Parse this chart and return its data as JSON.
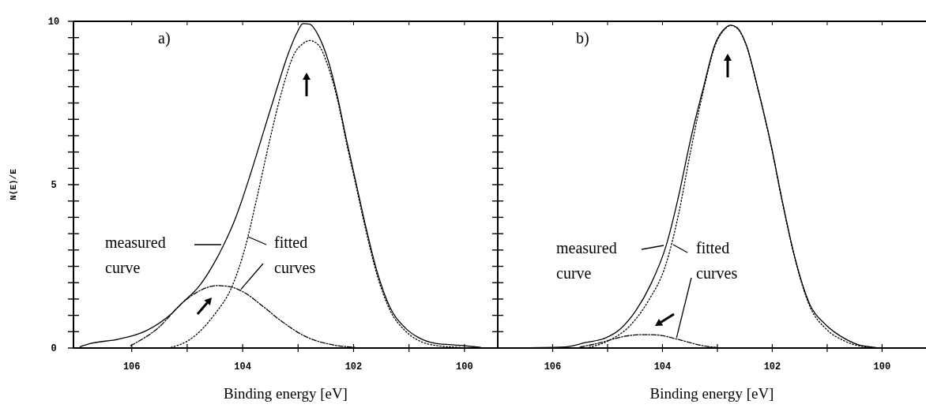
{
  "chart_data": [
    {
      "type": "line",
      "xlabel": "Binding energy [eV]",
      "ylabel": "N(E)/E",
      "xlim": [
        107.05,
        99.4
      ],
      "ylim": [
        0,
        10
      ],
      "xticks": [
        106,
        {
          "value": 105,
          "label": null
        },
        104,
        {
          "value": 103,
          "label": null
        },
        102,
        {
          "value": 101,
          "label": null
        },
        100
      ],
      "yticks": [
        0,
        {
          "value": 0.5,
          "label": null
        },
        {
          "value": 1,
          "label": null
        },
        {
          "value": 1.5,
          "label": null
        },
        {
          "value": 2,
          "label": null
        },
        {
          "value": 2.5,
          "label": null
        },
        {
          "value": 3,
          "label": null
        },
        {
          "value": 3.5,
          "label": null
        },
        {
          "value": 4,
          "label": null
        },
        {
          "value": 4.5,
          "label": null
        },
        5,
        {
          "value": 5.5,
          "label": null
        },
        {
          "value": 6,
          "label": null
        },
        {
          "value": 6.5,
          "label": null
        },
        {
          "value": 7,
          "label": null
        },
        {
          "value": 7.5,
          "label": null
        },
        {
          "value": 8,
          "label": null
        },
        {
          "value": 8.5,
          "label": null
        },
        {
          "value": 9,
          "label": null
        },
        {
          "value": 9.5,
          "label": null
        },
        10
      ],
      "annotations": [
        "a)",
        "measured curve",
        {
          "text": "fitted curves",
          "x": 104.05,
          "y": 1.76
        }
      ],
      "series": [
        {
          "color": "#000000",
          "line_style": "solid",
          "x": [
            106.93,
            106.74,
            106.24,
            105.74,
            105.29,
            105.07,
            104.79,
            104.52,
            104.35,
            104.13,
            103.85,
            103.63,
            103.41,
            103.18,
            103.02,
            102.91,
            102.79,
            102.63,
            102.46,
            102.29,
            102.13,
            101.96,
            101.79,
            101.57,
            101.35,
            101.07,
            100.85,
            100.52,
            100.07,
            99.71
          ],
          "values": [
            0.04,
            0.14,
            0.27,
            0.53,
            1.04,
            1.41,
            1.88,
            2.58,
            3.13,
            3.97,
            5.37,
            6.58,
            7.79,
            9.0,
            9.65,
            9.93,
            9.91,
            9.55,
            8.81,
            7.69,
            6.39,
            5.09,
            3.79,
            2.3,
            1.27,
            0.62,
            0.34,
            0.14,
            0.08,
            0.02
          ]
        },
        {
          "color": "#000000",
          "line_style": "dotted",
          "x": [
            105.29,
            104.96,
            104.52,
            104.18,
            103.96,
            103.74,
            103.52,
            103.29,
            103.07,
            102.91,
            102.79,
            102.63,
            102.46,
            102.29,
            102.13,
            101.96,
            101.79,
            101.57,
            101.35,
            101.07,
            100.85,
            100.52,
            100.07
          ],
          "values": [
            0.02,
            0.25,
            1.0,
            1.93,
            3.04,
            4.62,
            6.3,
            7.88,
            9.0,
            9.32,
            9.41,
            9.27,
            8.62,
            7.6,
            6.3,
            5.0,
            3.69,
            2.2,
            1.18,
            0.53,
            0.25,
            0.08,
            0.02
          ]
        },
        {
          "color": "#000000",
          "line_style": "dashed",
          "x": [
            106.02,
            105.52,
            105.07,
            104.79,
            104.46,
            104.24,
            103.96,
            103.63,
            103.29,
            102.85,
            102.41,
            101.96
          ],
          "values": [
            0.07,
            0.62,
            1.41,
            1.74,
            1.91,
            1.88,
            1.69,
            1.27,
            0.81,
            0.34,
            0.11,
            0.02
          ]
        }
      ]
    },
    {
      "type": "line",
      "xlabel": "Binding energy [eV]",
      "xlim": [
        107.0,
        99.2
      ],
      "ylim": [
        0,
        10
      ],
      "tick_labels": "x",
      "xticks": [
        106,
        {
          "value": 105,
          "label": null
        },
        104,
        {
          "value": 103,
          "label": null
        },
        102,
        {
          "value": 101,
          "label": null
        },
        100
      ],
      "yticks": [
        0,
        {
          "value": 0.5,
          "label": null
        },
        {
          "value": 1,
          "label": null
        },
        {
          "value": 1.5,
          "label": null
        },
        {
          "value": 2,
          "label": null
        },
        {
          "value": 2.5,
          "label": null
        },
        {
          "value": 3,
          "label": null
        },
        {
          "value": 3.5,
          "label": null
        },
        {
          "value": 4,
          "label": null
        },
        {
          "value": 4.5,
          "label": null
        },
        5,
        {
          "value": 5.5,
          "label": null
        },
        {
          "value": 6,
          "label": null
        },
        {
          "value": 6.5,
          "label": null
        },
        {
          "value": 7,
          "label": null
        },
        {
          "value": 7.5,
          "label": null
        },
        {
          "value": 8,
          "label": null
        },
        {
          "value": 8.5,
          "label": null
        },
        {
          "value": 9,
          "label": null
        },
        {
          "value": 9.5,
          "label": null
        },
        10
      ],
      "annotations": [
        "b)",
        "measured curve",
        {
          "text": "fitted curves",
          "x": 103.75,
          "y": 0.27
        }
      ],
      "series": [
        {
          "color": "#000000",
          "line_style": "solid",
          "x": [
            106.73,
            105.78,
            105.39,
            105.05,
            104.77,
            104.49,
            104.21,
            103.93,
            103.71,
            103.49,
            103.26,
            103.04,
            102.87,
            102.76,
            102.65,
            102.48,
            102.26,
            102.03,
            101.81,
            101.59,
            101.31,
            101.03,
            100.69,
            100.36,
            99.91,
            99.3
          ],
          "values": [
            0,
            0.03,
            0.17,
            0.3,
            0.58,
            1.13,
            1.96,
            3.15,
            4.62,
            6.37,
            7.93,
            9.31,
            9.77,
            9.88,
            9.82,
            9.31,
            7.93,
            6.28,
            4.44,
            2.78,
            1.31,
            0.72,
            0.3,
            0.07,
            0,
            0
          ]
        },
        {
          "color": "#000000",
          "line_style": "dotted",
          "x": [
            105.39,
            105.0,
            104.6,
            104.27,
            103.93,
            103.71,
            103.49,
            103.26,
            103.04,
            102.87,
            102.76,
            102.65,
            102.48,
            102.26,
            102.03,
            101.81,
            101.59,
            101.31,
            101.03,
            100.69,
            100.36,
            99.91
          ],
          "values": [
            0,
            0.21,
            0.67,
            1.41,
            2.6,
            4.07,
            6.0,
            7.84,
            9.26,
            9.75,
            9.87,
            9.8,
            9.29,
            7.9,
            6.25,
            4.4,
            2.75,
            1.25,
            0.6,
            0.22,
            0.05,
            0
          ]
        },
        {
          "color": "#000000",
          "line_style": "dashed",
          "x": [
            105.5,
            105.11,
            104.72,
            104.38,
            104.1,
            103.71,
            103.26,
            102.93
          ],
          "values": [
            0.03,
            0.17,
            0.35,
            0.41,
            0.4,
            0.26,
            0.07,
            0
          ]
        }
      ]
    }
  ]
}
